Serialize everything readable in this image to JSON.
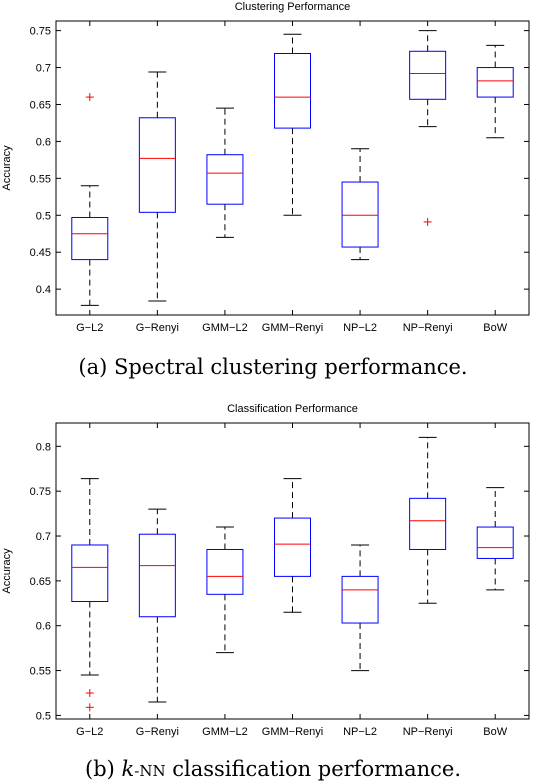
{
  "chart_data": [
    {
      "type": "box",
      "title": "Clustering Performance",
      "ylabel": "Accuracy",
      "caption": "(a) Spectral clustering performance.",
      "categories": [
        "G−L2",
        "G−Renyi",
        "GMM−L2",
        "GMM−Renyi",
        "NP−L2",
        "NP−Renyi",
        "BoW"
      ],
      "ylim": [
        0.365,
        0.763
      ],
      "yticks": [
        "0.4",
        "0.45",
        "0.5",
        "0.55",
        "0.6",
        "0.65",
        "0.7",
        "0.75"
      ],
      "boxes": [
        {
          "whisker_low": 0.378,
          "q1": 0.44,
          "median": 0.475,
          "q3": 0.497,
          "whisker_high": 0.54,
          "outliers": [
            0.66
          ]
        },
        {
          "whisker_low": 0.384,
          "q1": 0.504,
          "median": 0.577,
          "q3": 0.632,
          "whisker_high": 0.694,
          "outliers": []
        },
        {
          "whisker_low": 0.47,
          "q1": 0.515,
          "median": 0.557,
          "q3": 0.582,
          "whisker_high": 0.645,
          "outliers": []
        },
        {
          "whisker_low": 0.5,
          "q1": 0.618,
          "median": 0.66,
          "q3": 0.719,
          "whisker_high": 0.745,
          "outliers": []
        },
        {
          "whisker_low": 0.44,
          "q1": 0.457,
          "median": 0.5,
          "q3": 0.545,
          "whisker_high": 0.59,
          "outliers": []
        },
        {
          "whisker_low": 0.62,
          "q1": 0.657,
          "median": 0.692,
          "q3": 0.722,
          "whisker_high": 0.75,
          "outliers": [
            0.491
          ]
        },
        {
          "whisker_low": 0.605,
          "q1": 0.66,
          "median": 0.682,
          "q3": 0.7,
          "whisker_high": 0.73,
          "outliers": []
        }
      ]
    },
    {
      "type": "box",
      "title": "Classification Performance",
      "ylabel": "Accuracy",
      "caption_prefix": "(b) ",
      "caption_italic": "k",
      "caption_sc": "-NN",
      "caption_suffix": " classification performance.",
      "categories": [
        "G−L2",
        "G−Renyi",
        "GMM−L2",
        "GMM−Renyi",
        "NP−L2",
        "NP−Renyi",
        "BoW"
      ],
      "ylim": [
        0.496,
        0.826
      ],
      "yticks": [
        "0.5",
        "0.55",
        "0.6",
        "0.65",
        "0.7",
        "0.75",
        "0.8"
      ],
      "boxes": [
        {
          "whisker_low": 0.545,
          "q1": 0.627,
          "median": 0.665,
          "q3": 0.69,
          "whisker_high": 0.764,
          "outliers": [
            0.525,
            0.509
          ]
        },
        {
          "whisker_low": 0.515,
          "q1": 0.61,
          "median": 0.667,
          "q3": 0.702,
          "whisker_high": 0.73,
          "outliers": []
        },
        {
          "whisker_low": 0.57,
          "q1": 0.635,
          "median": 0.655,
          "q3": 0.685,
          "whisker_high": 0.71,
          "outliers": []
        },
        {
          "whisker_low": 0.615,
          "q1": 0.655,
          "median": 0.691,
          "q3": 0.72,
          "whisker_high": 0.764,
          "outliers": []
        },
        {
          "whisker_low": 0.55,
          "q1": 0.603,
          "median": 0.64,
          "q3": 0.655,
          "whisker_high": 0.69,
          "outliers": []
        },
        {
          "whisker_low": 0.625,
          "q1": 0.685,
          "median": 0.717,
          "q3": 0.742,
          "whisker_high": 0.81,
          "outliers": []
        },
        {
          "whisker_low": 0.64,
          "q1": 0.675,
          "median": 0.687,
          "q3": 0.71,
          "whisker_high": 0.754,
          "outliers": []
        }
      ]
    }
  ],
  "colors": {
    "box": "#0000ff",
    "median": "#ff0000",
    "outlier": "#ff0000",
    "whisker": "#000000"
  }
}
